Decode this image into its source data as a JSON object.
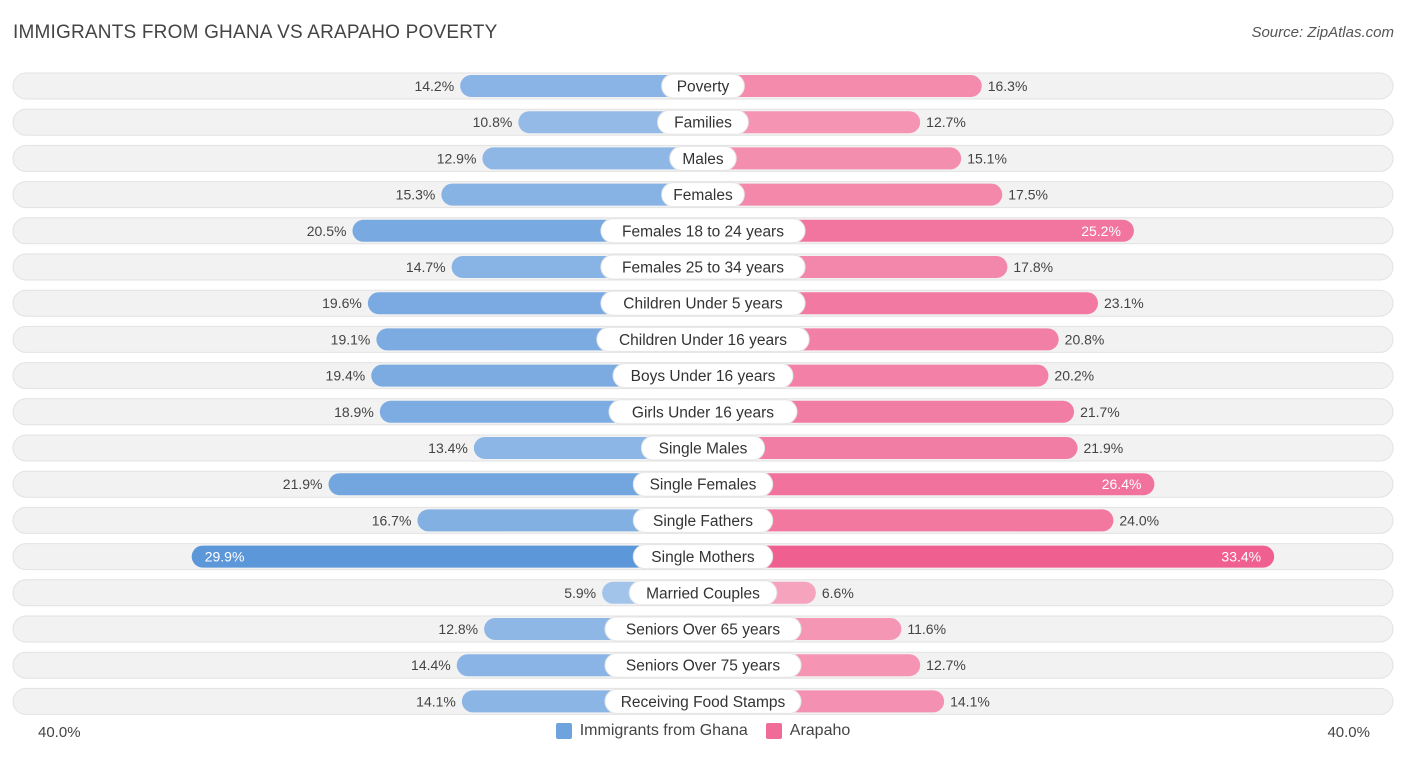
{
  "title": "IMMIGRANTS FROM GHANA VS ARAPAHO POVERTY",
  "source": "Source: ZipAtlas.com",
  "axis": {
    "left_label": "40.0%",
    "right_label": "40.0%"
  },
  "legend": [
    {
      "name": "Immigrants from Ghana",
      "color": "#6fa3dd"
    },
    {
      "name": "Arapaho",
      "color": "#f06b98"
    }
  ],
  "chart_data": {
    "type": "bar",
    "orientation": "horizontal-diverging",
    "title": "IMMIGRANTS FROM GHANA VS ARAPAHO POVERTY",
    "xlim": [
      -40,
      40
    ],
    "unit": "%",
    "categories": [
      "Poverty",
      "Families",
      "Males",
      "Females",
      "Females 18 to 24 years",
      "Females 25 to 34 years",
      "Children Under 5 years",
      "Children Under 16 years",
      "Boys Under 16 years",
      "Girls Under 16 years",
      "Single Males",
      "Single Females",
      "Single Fathers",
      "Single Mothers",
      "Married Couples",
      "Seniors Over 65 years",
      "Seniors Over 75 years",
      "Receiving Food Stamps"
    ],
    "series": [
      {
        "name": "Immigrants from Ghana",
        "values": [
          14.2,
          10.8,
          12.9,
          15.3,
          20.5,
          14.7,
          19.6,
          19.1,
          19.4,
          18.9,
          13.4,
          21.9,
          16.7,
          29.9,
          5.9,
          12.8,
          14.4,
          14.1
        ],
        "labels": [
          "14.2%",
          "10.8%",
          "12.9%",
          "15.3%",
          "20.5%",
          "14.7%",
          "19.6%",
          "19.1%",
          "19.4%",
          "18.9%",
          "13.4%",
          "21.9%",
          "16.7%",
          "29.9%",
          "5.9%",
          "12.8%",
          "14.4%",
          "14.1%"
        ]
      },
      {
        "name": "Arapaho",
        "values": [
          16.3,
          12.7,
          15.1,
          17.5,
          25.2,
          17.8,
          23.1,
          20.8,
          20.2,
          21.7,
          21.9,
          26.4,
          24.0,
          33.4,
          6.6,
          11.6,
          12.7,
          14.1
        ],
        "labels": [
          "16.3%",
          "12.7%",
          "15.1%",
          "17.5%",
          "25.2%",
          "17.8%",
          "23.1%",
          "20.8%",
          "20.2%",
          "21.7%",
          "21.9%",
          "26.4%",
          "24.0%",
          "33.4%",
          "6.6%",
          "11.6%",
          "12.7%",
          "14.1%"
        ]
      }
    ]
  }
}
